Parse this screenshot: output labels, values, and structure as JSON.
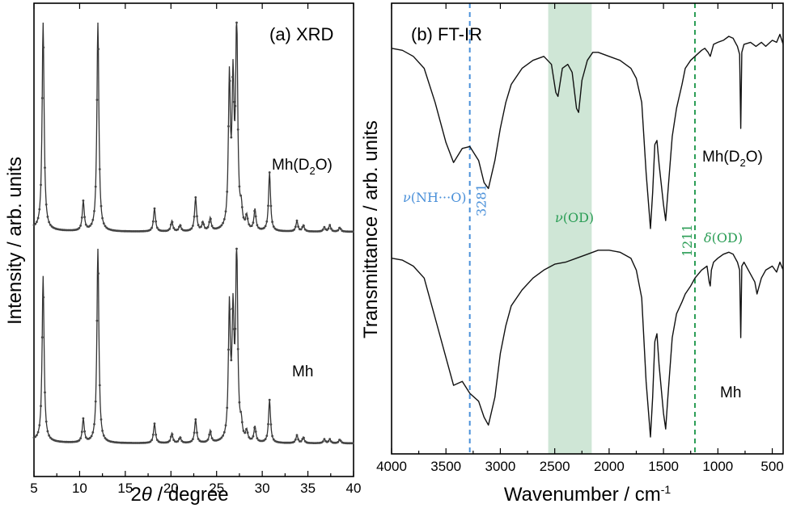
{
  "chart_data": [
    {
      "type": "line",
      "title": "(a) XRD",
      "xlabel": "2θ / degree",
      "ylabel": "Intensity / arb. units",
      "xlim": [
        5,
        40
      ],
      "xticks": [
        5,
        10,
        15,
        20,
        25,
        30,
        35,
        40
      ],
      "grid": false,
      "peaks_note": "Peak positions (2θ) and approximate relative heights (0-100)",
      "series": [
        {
          "name": "Mh(D2O)",
          "label_text": "Mh(D₂O)",
          "peaks": [
            {
              "x": 6.0,
              "h": 100
            },
            {
              "x": 10.4,
              "h": 14
            },
            {
              "x": 12.0,
              "h": 100
            },
            {
              "x": 18.2,
              "h": 11
            },
            {
              "x": 20.1,
              "h": 5
            },
            {
              "x": 21.0,
              "h": 3
            },
            {
              "x": 22.7,
              "h": 16
            },
            {
              "x": 23.5,
              "h": 4
            },
            {
              "x": 24.3,
              "h": 6
            },
            {
              "x": 26.4,
              "h": 70
            },
            {
              "x": 26.8,
              "h": 66
            },
            {
              "x": 27.2,
              "h": 100
            },
            {
              "x": 27.7,
              "h": 8
            },
            {
              "x": 28.3,
              "h": 6
            },
            {
              "x": 29.2,
              "h": 10
            },
            {
              "x": 30.8,
              "h": 28
            },
            {
              "x": 33.8,
              "h": 5
            },
            {
              "x": 34.5,
              "h": 3
            },
            {
              "x": 36.8,
              "h": 2
            },
            {
              "x": 37.4,
              "h": 3
            },
            {
              "x": 38.5,
              "h": 2
            }
          ]
        },
        {
          "name": "Mh",
          "label_text": "Mh",
          "peaks": [
            {
              "x": 6.0,
              "h": 85
            },
            {
              "x": 10.4,
              "h": 12
            },
            {
              "x": 12.0,
              "h": 100
            },
            {
              "x": 18.2,
              "h": 10
            },
            {
              "x": 20.1,
              "h": 5
            },
            {
              "x": 21.0,
              "h": 3
            },
            {
              "x": 22.7,
              "h": 12
            },
            {
              "x": 24.3,
              "h": 6
            },
            {
              "x": 26.4,
              "h": 67
            },
            {
              "x": 26.8,
              "h": 61
            },
            {
              "x": 27.2,
              "h": 100
            },
            {
              "x": 27.7,
              "h": 7
            },
            {
              "x": 28.3,
              "h": 5
            },
            {
              "x": 29.2,
              "h": 8
            },
            {
              "x": 30.8,
              "h": 22
            },
            {
              "x": 33.8,
              "h": 4
            },
            {
              "x": 34.5,
              "h": 3
            },
            {
              "x": 36.8,
              "h": 2
            },
            {
              "x": 37.4,
              "h": 2
            },
            {
              "x": 38.5,
              "h": 2
            }
          ]
        }
      ]
    },
    {
      "type": "line",
      "title": "(b) FT-IR",
      "xlabel": "Wavenumber / cm⁻¹",
      "ylabel": "Transmittance / arb. units",
      "xlim": [
        4000,
        400
      ],
      "xreversed": true,
      "xticks": [
        4000,
        3500,
        3000,
        2500,
        2000,
        1500,
        1000,
        500
      ],
      "grid": false,
      "shaded_band": {
        "from": 2560,
        "to": 2160,
        "color": "#cfe6d6",
        "label": "ν(OD)"
      },
      "annotations": [
        {
          "x": 3281,
          "color": "#4a90d9",
          "label": "ν(NH···O)",
          "value_label": "3281"
        },
        {
          "x": 1211,
          "color": "#2a9d55",
          "label": "δ(OD)",
          "value_label": "1211"
        }
      ],
      "series": [
        {
          "name": "Mh(D2O)",
          "label_text": "Mh(D₂O)",
          "points": [
            [
              4000,
              92
            ],
            [
              3900,
              91
            ],
            [
              3800,
              88
            ],
            [
              3700,
              82
            ],
            [
              3600,
              65
            ],
            [
              3500,
              45
            ],
            [
              3430,
              35
            ],
            [
              3350,
              42
            ],
            [
              3281,
              43
            ],
            [
              3200,
              36
            ],
            [
              3150,
              25
            ],
            [
              3110,
              22
            ],
            [
              3050,
              36
            ],
            [
              3000,
              52
            ],
            [
              2950,
              65
            ],
            [
              2900,
              74
            ],
            [
              2800,
              82
            ],
            [
              2700,
              86
            ],
            [
              2600,
              88
            ],
            [
              2530,
              84
            ],
            [
              2490,
              70
            ],
            [
              2470,
              68
            ],
            [
              2430,
              82
            ],
            [
              2380,
              84
            ],
            [
              2340,
              80
            ],
            [
              2300,
              62
            ],
            [
              2280,
              60
            ],
            [
              2250,
              76
            ],
            [
              2200,
              86
            ],
            [
              2150,
              90
            ],
            [
              2100,
              90
            ],
            [
              2000,
              88
            ],
            [
              1900,
              86
            ],
            [
              1800,
              82
            ],
            [
              1750,
              77
            ],
            [
              1700,
              65
            ],
            [
              1660,
              30
            ],
            [
              1620,
              2
            ],
            [
              1600,
              20
            ],
            [
              1580,
              44
            ],
            [
              1560,
              46
            ],
            [
              1540,
              34
            ],
            [
              1500,
              14
            ],
            [
              1480,
              6
            ],
            [
              1460,
              20
            ],
            [
              1420,
              48
            ],
            [
              1380,
              62
            ],
            [
              1330,
              74
            ],
            [
              1300,
              82
            ],
            [
              1250,
              86
            ],
            [
              1211,
              88
            ],
            [
              1150,
              91
            ],
            [
              1120,
              92
            ],
            [
              1090,
              90
            ],
            [
              1070,
              88
            ],
            [
              1040,
              94
            ],
            [
              1000,
              95
            ],
            [
              950,
              96
            ],
            [
              900,
              98
            ],
            [
              860,
              97
            ],
            [
              840,
              95
            ],
            [
              820,
              93
            ],
            [
              800,
              89
            ],
            [
              790,
              52
            ],
            [
              780,
              90
            ],
            [
              760,
              94
            ],
            [
              700,
              95
            ],
            [
              650,
              93
            ],
            [
              600,
              95
            ],
            [
              560,
              93
            ],
            [
              500,
              96
            ],
            [
              460,
              95
            ],
            [
              430,
              99
            ],
            [
              400,
              94
            ]
          ]
        },
        {
          "name": "Mh",
          "label_text": "Mh",
          "points": [
            [
              4000,
              92
            ],
            [
              3900,
              91
            ],
            [
              3800,
              88
            ],
            [
              3700,
              82
            ],
            [
              3600,
              62
            ],
            [
              3500,
              42
            ],
            [
              3430,
              28
            ],
            [
              3350,
              30
            ],
            [
              3281,
              24
            ],
            [
              3200,
              20
            ],
            [
              3150,
              12
            ],
            [
              3110,
              8
            ],
            [
              3050,
              22
            ],
            [
              3000,
              44
            ],
            [
              2950,
              58
            ],
            [
              2900,
              68
            ],
            [
              2800,
              76
            ],
            [
              2700,
              82
            ],
            [
              2600,
              86
            ],
            [
              2500,
              89
            ],
            [
              2400,
              90
            ],
            [
              2300,
              92
            ],
            [
              2200,
              94
            ],
            [
              2100,
              96
            ],
            [
              2000,
              96
            ],
            [
              1900,
              95
            ],
            [
              1800,
              92
            ],
            [
              1750,
              86
            ],
            [
              1700,
              72
            ],
            [
              1660,
              30
            ],
            [
              1620,
              2
            ],
            [
              1600,
              22
            ],
            [
              1580,
              50
            ],
            [
              1560,
              54
            ],
            [
              1540,
              38
            ],
            [
              1500,
              14
            ],
            [
              1480,
              6
            ],
            [
              1460,
              22
            ],
            [
              1420,
              52
            ],
            [
              1380,
              64
            ],
            [
              1330,
              70
            ],
            [
              1300,
              74
            ],
            [
              1250,
              78
            ],
            [
              1211,
              82
            ],
            [
              1150,
              86
            ],
            [
              1100,
              88
            ],
            [
              1080,
              80
            ],
            [
              1070,
              78
            ],
            [
              1060,
              86
            ],
            [
              1040,
              90
            ],
            [
              1000,
              92
            ],
            [
              950,
              94
            ],
            [
              900,
              95
            ],
            [
              860,
              94
            ],
            [
              840,
              92
            ],
            [
              820,
              90
            ],
            [
              800,
              86
            ],
            [
              790,
              52
            ],
            [
              780,
              88
            ],
            [
              760,
              90
            ],
            [
              700,
              84
            ],
            [
              660,
              80
            ],
            [
              640,
              74
            ],
            [
              620,
              78
            ],
            [
              600,
              82
            ],
            [
              560,
              86
            ],
            [
              500,
              88
            ],
            [
              460,
              85
            ],
            [
              430,
              90
            ],
            [
              400,
              86
            ]
          ]
        }
      ]
    }
  ]
}
